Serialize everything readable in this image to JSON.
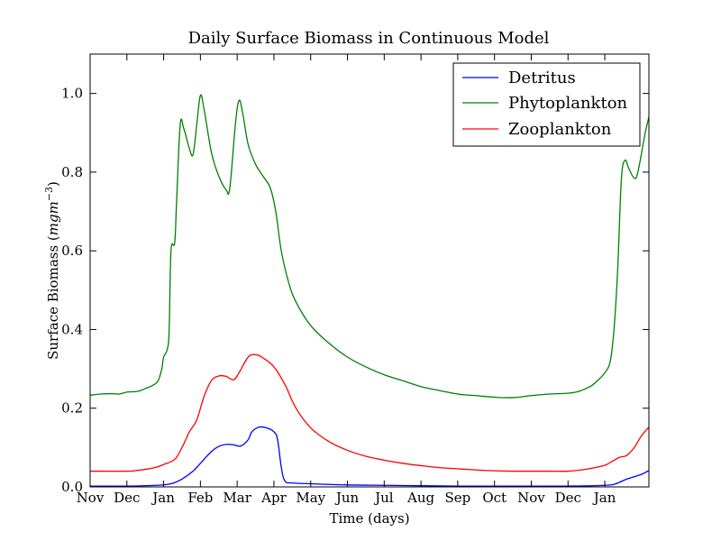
{
  "chart_data": {
    "type": "line",
    "title": "Daily Surface Biomass in Continuous Model",
    "xlabel": "Time (days)",
    "ylabel": "Surface Biomass (mgm⁻³)",
    "ylabel_text": "Surface Biomass (",
    "ylabel_unit": "mgm",
    "ylabel_exp": "−3",
    "ylabel_close": ")",
    "xlim": [
      0,
      15.2
    ],
    "ylim": [
      0,
      1.1
    ],
    "grid": false,
    "legend_position": "top-right",
    "x_ticks": [
      {
        "value": 0,
        "label": "Nov"
      },
      {
        "value": 1,
        "label": "Dec"
      },
      {
        "value": 2,
        "label": "Jan"
      },
      {
        "value": 3,
        "label": "Feb"
      },
      {
        "value": 4,
        "label": "Mar"
      },
      {
        "value": 5,
        "label": "Apr"
      },
      {
        "value": 6,
        "label": "May"
      },
      {
        "value": 7,
        "label": "Jun"
      },
      {
        "value": 8,
        "label": "Jul"
      },
      {
        "value": 9,
        "label": "Aug"
      },
      {
        "value": 10,
        "label": "Sep"
      },
      {
        "value": 11,
        "label": "Oct"
      },
      {
        "value": 12,
        "label": "Nov"
      },
      {
        "value": 13,
        "label": "Dec"
      },
      {
        "value": 14,
        "label": "Jan"
      }
    ],
    "y_ticks": [
      {
        "value": 0.0,
        "label": "0.0"
      },
      {
        "value": 0.2,
        "label": "0.2"
      },
      {
        "value": 0.4,
        "label": "0.4"
      },
      {
        "value": 0.6,
        "label": "0.6"
      },
      {
        "value": 0.8,
        "label": "0.8"
      },
      {
        "value": 1.0,
        "label": "1.0"
      }
    ],
    "series": [
      {
        "name": "Detritus",
        "color": "#0000ff",
        "points": [
          [
            0,
            0.002
          ],
          [
            1,
            0.002
          ],
          [
            1.8,
            0.004
          ],
          [
            2.2,
            0.008
          ],
          [
            2.5,
            0.02
          ],
          [
            2.8,
            0.04
          ],
          [
            3.0,
            0.06
          ],
          [
            3.3,
            0.09
          ],
          [
            3.5,
            0.103
          ],
          [
            3.7,
            0.108
          ],
          [
            3.9,
            0.107
          ],
          [
            4.1,
            0.104
          ],
          [
            4.3,
            0.12
          ],
          [
            4.4,
            0.14
          ],
          [
            4.6,
            0.152
          ],
          [
            4.8,
            0.15
          ],
          [
            5.0,
            0.14
          ],
          [
            5.1,
            0.12
          ],
          [
            5.2,
            0.05
          ],
          [
            5.3,
            0.015
          ],
          [
            5.5,
            0.01
          ],
          [
            6,
            0.008
          ],
          [
            7,
            0.005
          ],
          [
            8,
            0.004
          ],
          [
            9,
            0.003
          ],
          [
            10,
            0.002
          ],
          [
            11,
            0.002
          ],
          [
            12,
            0.002
          ],
          [
            13,
            0.002
          ],
          [
            14,
            0.004
          ],
          [
            14.3,
            0.008
          ],
          [
            14.6,
            0.02
          ],
          [
            15.0,
            0.032
          ],
          [
            15.2,
            0.042
          ]
        ]
      },
      {
        "name": "Phytoplankton",
        "color": "#008000",
        "points": [
          [
            0,
            0.233
          ],
          [
            0.3,
            0.236
          ],
          [
            0.6,
            0.237
          ],
          [
            0.8,
            0.236
          ],
          [
            1.0,
            0.241
          ],
          [
            1.3,
            0.243
          ],
          [
            1.5,
            0.25
          ],
          [
            1.7,
            0.258
          ],
          [
            1.85,
            0.27
          ],
          [
            1.95,
            0.3
          ],
          [
            2.0,
            0.33
          ],
          [
            2.1,
            0.35
          ],
          [
            2.15,
            0.4
          ],
          [
            2.2,
            0.6
          ],
          [
            2.3,
            0.62
          ],
          [
            2.35,
            0.72
          ],
          [
            2.45,
            0.92
          ],
          [
            2.55,
            0.91
          ],
          [
            2.7,
            0.86
          ],
          [
            2.8,
            0.845
          ],
          [
            2.9,
            0.92
          ],
          [
            3.0,
            0.995
          ],
          [
            3.1,
            0.96
          ],
          [
            3.3,
            0.85
          ],
          [
            3.5,
            0.79
          ],
          [
            3.7,
            0.755
          ],
          [
            3.8,
            0.76
          ],
          [
            3.95,
            0.92
          ],
          [
            4.05,
            0.982
          ],
          [
            4.15,
            0.95
          ],
          [
            4.3,
            0.87
          ],
          [
            4.5,
            0.82
          ],
          [
            4.7,
            0.79
          ],
          [
            4.9,
            0.76
          ],
          [
            5.05,
            0.7
          ],
          [
            5.2,
            0.6
          ],
          [
            5.4,
            0.52
          ],
          [
            5.6,
            0.47
          ],
          [
            6.0,
            0.41
          ],
          [
            6.5,
            0.365
          ],
          [
            7.0,
            0.33
          ],
          [
            7.5,
            0.305
          ],
          [
            8.0,
            0.285
          ],
          [
            8.5,
            0.27
          ],
          [
            9.0,
            0.255
          ],
          [
            9.5,
            0.245
          ],
          [
            10.0,
            0.236
          ],
          [
            10.5,
            0.232
          ],
          [
            11.0,
            0.228
          ],
          [
            11.5,
            0.227
          ],
          [
            12.0,
            0.232
          ],
          [
            12.5,
            0.236
          ],
          [
            13.0,
            0.238
          ],
          [
            13.3,
            0.243
          ],
          [
            13.6,
            0.255
          ],
          [
            13.8,
            0.27
          ],
          [
            14.0,
            0.29
          ],
          [
            14.15,
            0.32
          ],
          [
            14.25,
            0.4
          ],
          [
            14.35,
            0.55
          ],
          [
            14.45,
            0.78
          ],
          [
            14.55,
            0.83
          ],
          [
            14.65,
            0.81
          ],
          [
            14.8,
            0.785
          ],
          [
            14.9,
            0.8
          ],
          [
            15.1,
            0.9
          ],
          [
            15.2,
            0.94
          ]
        ]
      },
      {
        "name": "Zooplankton",
        "color": "#ff0000",
        "points": [
          [
            0,
            0.04
          ],
          [
            1,
            0.04
          ],
          [
            1.3,
            0.042
          ],
          [
            1.6,
            0.046
          ],
          [
            1.8,
            0.05
          ],
          [
            2.0,
            0.057
          ],
          [
            2.3,
            0.07
          ],
          [
            2.5,
            0.1
          ],
          [
            2.7,
            0.14
          ],
          [
            2.9,
            0.17
          ],
          [
            3.1,
            0.23
          ],
          [
            3.3,
            0.27
          ],
          [
            3.5,
            0.282
          ],
          [
            3.7,
            0.281
          ],
          [
            3.9,
            0.272
          ],
          [
            4.05,
            0.29
          ],
          [
            4.3,
            0.33
          ],
          [
            4.5,
            0.336
          ],
          [
            4.7,
            0.328
          ],
          [
            5.0,
            0.305
          ],
          [
            5.3,
            0.26
          ],
          [
            5.6,
            0.2
          ],
          [
            6.0,
            0.15
          ],
          [
            6.5,
            0.115
          ],
          [
            7.0,
            0.093
          ],
          [
            7.5,
            0.078
          ],
          [
            8.0,
            0.068
          ],
          [
            8.5,
            0.06
          ],
          [
            9.0,
            0.054
          ],
          [
            9.5,
            0.049
          ],
          [
            10.0,
            0.046
          ],
          [
            10.5,
            0.043
          ],
          [
            11.0,
            0.041
          ],
          [
            11.5,
            0.04
          ],
          [
            12.0,
            0.04
          ],
          [
            12.5,
            0.04
          ],
          [
            13.0,
            0.04
          ],
          [
            13.5,
            0.045
          ],
          [
            14.0,
            0.055
          ],
          [
            14.2,
            0.065
          ],
          [
            14.4,
            0.075
          ],
          [
            14.6,
            0.08
          ],
          [
            14.8,
            0.1
          ],
          [
            15.0,
            0.13
          ],
          [
            15.2,
            0.152
          ]
        ]
      }
    ]
  }
}
